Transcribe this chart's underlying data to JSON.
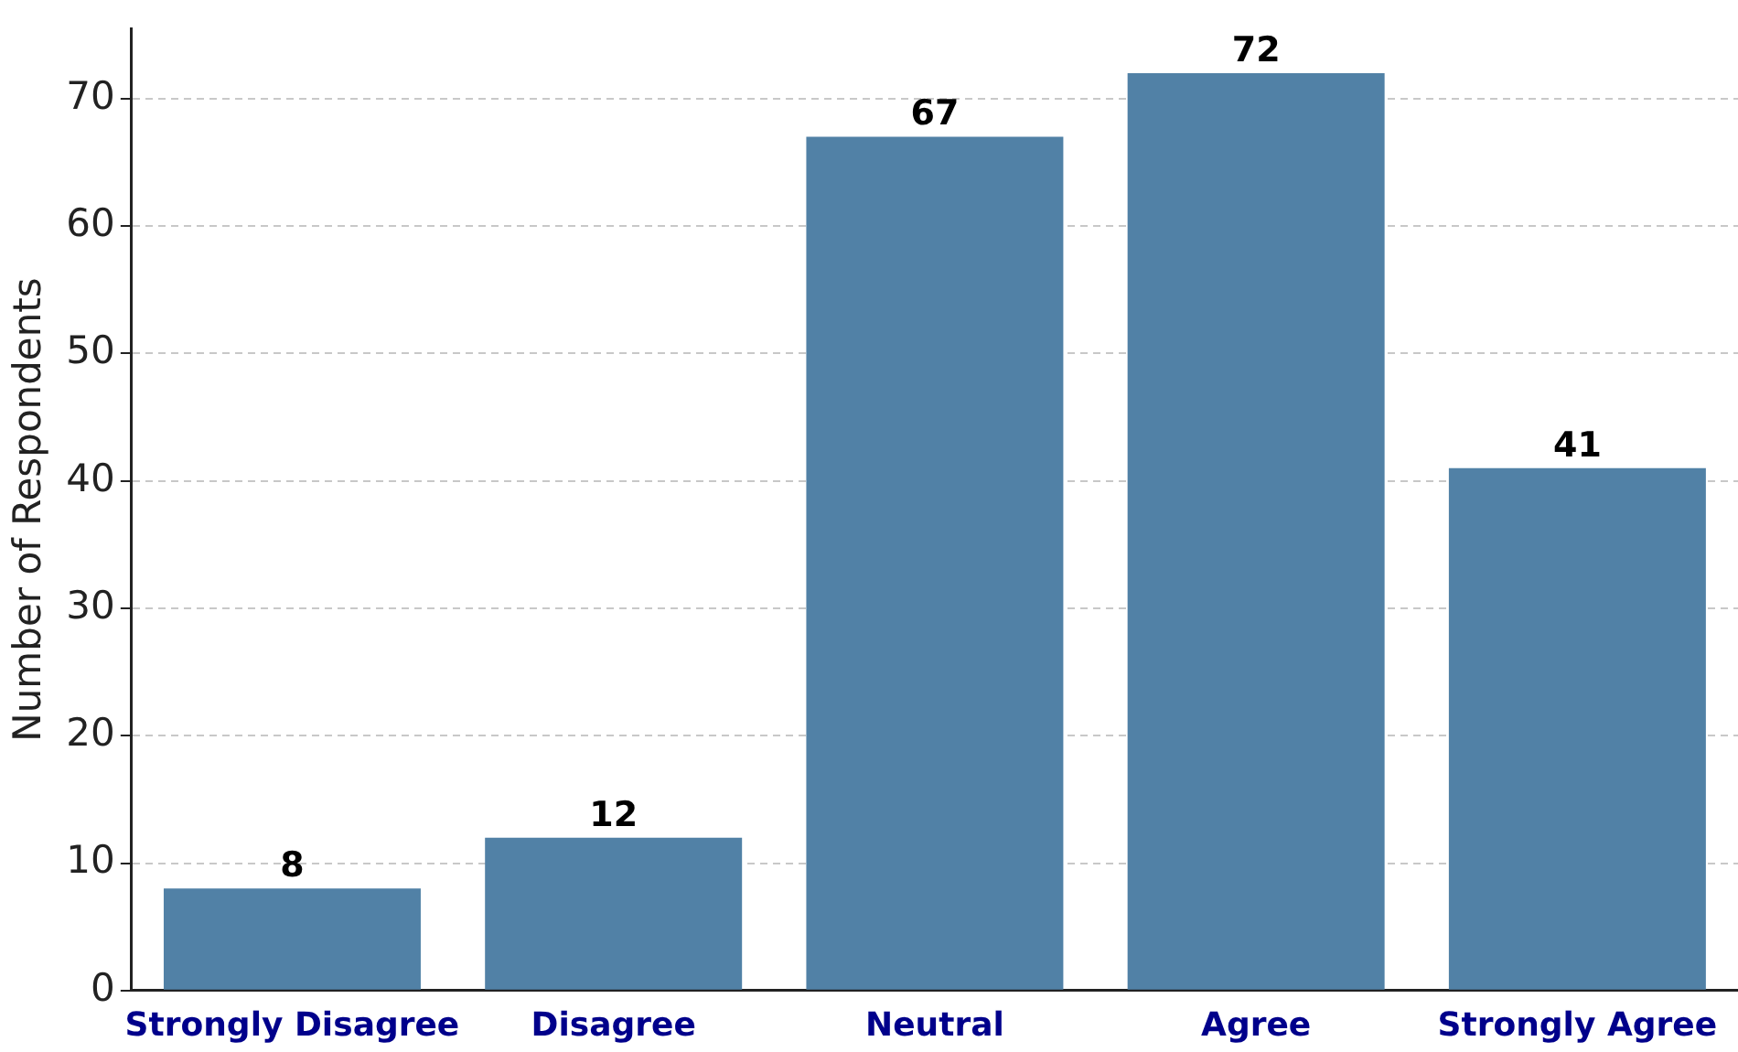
{
  "chart_data": {
    "type": "bar",
    "ylabel": "Number of Respondents",
    "categories": [
      "Strongly Disagree",
      "Disagree",
      "Neutral",
      "Agree",
      "Strongly Agree"
    ],
    "values": [
      8,
      12,
      67,
      72,
      41
    ],
    "color": "#5181a6",
    "ylim": [
      0,
      75.5
    ],
    "yticks": [
      0,
      10,
      20,
      30,
      40,
      50,
      60,
      70
    ],
    "grid": "y",
    "data_labels": true,
    "legend": false
  }
}
